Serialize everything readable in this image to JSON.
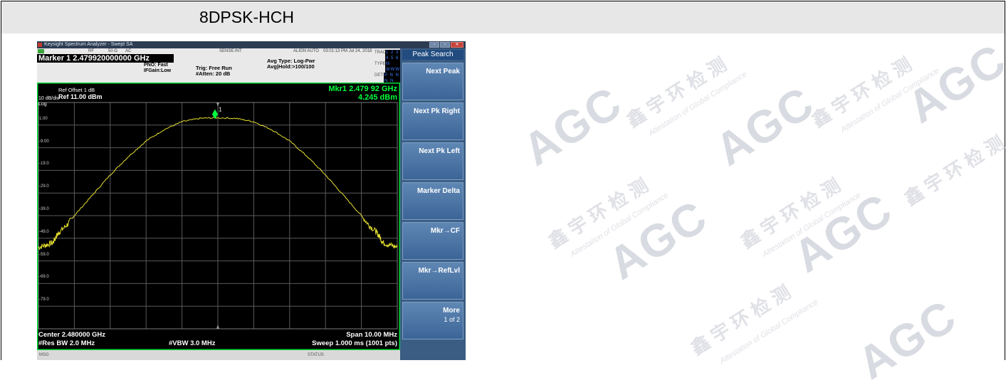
{
  "table": {
    "header_left": "8DPSK-HCH",
    "header_right": ""
  },
  "watermark": {
    "logo_text": "AGC",
    "cn_text": "鑫 宇 环 检 测",
    "en_text": "Attestation of Global Compliance"
  },
  "analyzer": {
    "window_title": "Keysight Spectrum Analyzer - Swept SA",
    "window_buttons": [
      "−",
      "▫",
      "✕"
    ],
    "rf_bar": {
      "rf": "RF",
      "impedance": "50 Ω",
      "coupling": "AC",
      "sense": "SENSE:INT",
      "align": "ALIGN AUTO",
      "datetime": "03:01:13 PM Jul 24, 2018"
    },
    "marker_title": "Marker 1 2.479920000000 GHz",
    "pno": "PNO: Fast",
    "ifgain": "IFGain:Low",
    "trig": "Trig: Free Run",
    "atten": "#Atten: 20 dB",
    "avg_type": "Avg Type: Log-Pwr",
    "avg_hold": "Avg|Hold:>100/100",
    "trace": {
      "trace_label": "TRACE",
      "trace_value": "1 2 3 4 5 6",
      "type_label": "TYPE",
      "type_value": "M WWWWW",
      "det_label": "DET",
      "det_value": "P N N N N N"
    },
    "ref_offset": "Ref Offset 1 dB",
    "ref_level": "Ref 11.00 dBm",
    "scale": "10 dB/div",
    "scale_type": "Log",
    "marker_readout_freq": "Mkr1 2.479 92 GHz",
    "marker_readout_level": "4.245 dBm",
    "marker_label": "1",
    "y_ticks": [
      "1.00",
      "-9.00",
      "-19.0",
      "-29.0",
      "-39.0",
      "-49.0",
      "-59.0",
      "-69.0",
      "-79.0"
    ],
    "center": "Center 2.480000 GHz",
    "res_bw": "#Res BW 2.0 MHz",
    "vbw": "#VBW 3.0 MHz",
    "span": "Span 10.00 MHz",
    "sweep": "Sweep  1.000 ms (1001 pts)",
    "msg": "MSG",
    "status": "STATUS",
    "colors": {
      "trace": "#e8e030",
      "marker": "#00ff3c",
      "grid": "#5a5a5a",
      "border": "#00d83a"
    }
  },
  "softkeys": {
    "header": "Peak Search",
    "keys": [
      {
        "label": "Next Peak",
        "sub": ""
      },
      {
        "label": "Next Pk Right",
        "sub": ""
      },
      {
        "label": "Next Pk Left",
        "sub": ""
      },
      {
        "label": "Marker Delta",
        "sub": ""
      },
      {
        "label": "Mkr→CF",
        "sub": ""
      },
      {
        "label": "Mkr→RefLvl",
        "sub": ""
      },
      {
        "label": "More",
        "sub": "1 of 2"
      }
    ]
  },
  "chart_data": {
    "type": "line",
    "x_range_ghz": [
      2.475,
      2.485
    ],
    "ylim": [
      -89,
      11
    ],
    "marker": {
      "freq_ghz": 2.47992,
      "level_dbm": 4.245
    },
    "series": [
      {
        "x": [
          2.475,
          2.4752,
          2.4754,
          2.4755,
          2.4756,
          2.4758,
          2.476,
          2.4765,
          2.477,
          2.4775,
          2.478,
          2.4785,
          2.479,
          2.4795,
          2.47992,
          2.4805,
          2.481,
          2.4815,
          2.482,
          2.4825,
          2.483,
          2.4835,
          2.484,
          2.4842,
          2.4844,
          2.4845,
          2.4846,
          2.4848,
          2.485
        ],
        "y": [
          -53,
          -52,
          -51,
          -48,
          -46,
          -43,
          -39,
          -30,
          -21,
          -13,
          -6,
          -1,
          2.5,
          4,
          4.245,
          4,
          2.5,
          -1,
          -6,
          -13,
          -21,
          -30,
          -39,
          -43,
          -46,
          -48,
          -51,
          -52,
          -53
        ]
      }
    ]
  }
}
